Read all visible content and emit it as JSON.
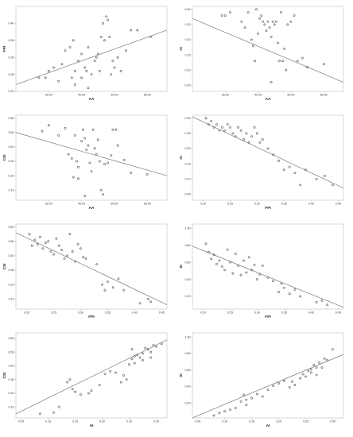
{
  "chart_data": [
    {
      "type": "scatter",
      "xlabel": "AA",
      "ylabel": "FPI",
      "xlim": [
        20,
        66
      ],
      "ylim": [
        0.2,
        0.45
      ],
      "xticks": [
        "30.00",
        "40.00",
        "50.00",
        "60.00"
      ],
      "yticks": [
        "0.20",
        "0.25",
        "0.30",
        "0.35",
        "0.40"
      ],
      "fit": {
        "x": [
          20,
          66
        ],
        "y": [
          0.22,
          0.38
        ]
      },
      "points": [
        [
          29,
          0.24
        ],
        [
          30,
          0.26
        ],
        [
          31.5,
          0.27
        ],
        [
          33,
          0.23
        ],
        [
          34,
          0.28
        ],
        [
          36.5,
          0.33
        ],
        [
          37,
          0.24
        ],
        [
          37.5,
          0.35
        ],
        [
          38,
          0.22
        ],
        [
          38,
          0.26
        ],
        [
          39,
          0.29
        ],
        [
          40,
          0.31
        ],
        [
          40,
          0.24
        ],
        [
          41,
          0.27
        ],
        [
          41.5,
          0.26
        ],
        [
          42,
          0.33
        ],
        [
          42,
          0.21
        ],
        [
          43,
          0.25
        ],
        [
          44,
          0.29
        ],
        [
          44.5,
          0.3
        ],
        [
          45,
          0.31
        ],
        [
          45.5,
          0.26
        ],
        [
          46,
          0.36
        ],
        [
          46.5,
          0.4
        ],
        [
          47,
          0.35
        ],
        [
          47.5,
          0.42
        ],
        [
          48,
          0.41
        ],
        [
          48.5,
          0.36
        ],
        [
          49,
          0.25
        ],
        [
          49.5,
          0.29
        ],
        [
          50,
          0.27
        ],
        [
          51,
          0.3
        ],
        [
          52,
          0.26
        ],
        [
          53.5,
          0.32
        ],
        [
          55,
          0.38
        ],
        [
          57,
          0.38
        ],
        [
          61,
          0.36
        ],
        [
          27,
          0.24
        ],
        [
          35,
          0.32
        ]
      ]
    },
    {
      "type": "scatter",
      "xlabel": "AA",
      "ylabel": "AI",
      "xlim": [
        20,
        66
      ],
      "ylim": [
        0.03,
        0.31
      ],
      "xticks": [
        "30.00",
        "40.00",
        "50.00",
        "60.00"
      ],
      "yticks": [
        "0.05",
        "0.10",
        "0.15",
        "0.20",
        "0.25",
        "0.30"
      ],
      "fit": {
        "x": [
          20,
          66
        ],
        "y": [
          0.27,
          0.06
        ]
      },
      "points": [
        [
          29,
          0.28
        ],
        [
          30,
          0.28
        ],
        [
          31.5,
          0.29
        ],
        [
          35,
          0.26
        ],
        [
          37,
          0.29
        ],
        [
          38,
          0.2
        ],
        [
          38.5,
          0.18
        ],
        [
          39.5,
          0.3
        ],
        [
          40,
          0.22
        ],
        [
          40.5,
          0.27
        ],
        [
          41,
          0.28
        ],
        [
          41.5,
          0.26
        ],
        [
          42,
          0.25
        ],
        [
          42.5,
          0.23
        ],
        [
          43,
          0.26
        ],
        [
          43.5,
          0.24
        ],
        [
          44,
          0.21
        ],
        [
          44.5,
          0.26
        ],
        [
          45,
          0.25
        ],
        [
          45.5,
          0.26
        ],
        [
          46,
          0.19
        ],
        [
          46.5,
          0.13
        ],
        [
          47,
          0.29
        ],
        [
          47.5,
          0.13
        ],
        [
          48,
          0.17
        ],
        [
          48.5,
          0.1
        ],
        [
          49,
          0.25
        ],
        [
          50,
          0.26
        ],
        [
          51,
          0.28
        ],
        [
          52,
          0.13
        ],
        [
          53.5,
          0.14
        ],
        [
          55,
          0.11
        ],
        [
          60,
          0.12
        ],
        [
          44,
          0.06
        ],
        [
          39,
          0.13
        ],
        [
          36,
          0.24
        ]
      ]
    },
    {
      "type": "scatter",
      "xlabel": "AA",
      "ylabel": "CSI",
      "xlim": [
        20,
        66
      ],
      "ylim": [
        0.03,
        0.62
      ],
      "xticks": [
        "30.00",
        "40.00",
        "50.00",
        "60.00"
      ],
      "yticks": [
        "0.10",
        "0.20",
        "0.30",
        "0.40",
        "0.50",
        "0.60"
      ],
      "fit": {
        "x": [
          20,
          66
        ],
        "y": [
          0.5,
          0.2
        ]
      },
      "points": [
        [
          28,
          0.51
        ],
        [
          30,
          0.55
        ],
        [
          33,
          0.48
        ],
        [
          35,
          0.53
        ],
        [
          36,
          0.35
        ],
        [
          37,
          0.32
        ],
        [
          37.5,
          0.19
        ],
        [
          38,
          0.48
        ],
        [
          38.5,
          0.3
        ],
        [
          39,
          0.26
        ],
        [
          40,
          0.44
        ],
        [
          40.5,
          0.52
        ],
        [
          41,
          0.46
        ],
        [
          41.5,
          0.38
        ],
        [
          42,
          0.41
        ],
        [
          42.5,
          0.29
        ],
        [
          43,
          0.23
        ],
        [
          43.5,
          0.52
        ],
        [
          44,
          0.39
        ],
        [
          44.5,
          0.35
        ],
        [
          45,
          0.45
        ],
        [
          45.5,
          0.3
        ],
        [
          46,
          0.1
        ],
        [
          46.5,
          0.07
        ],
        [
          47,
          0.28
        ],
        [
          48,
          0.29
        ],
        [
          49,
          0.34
        ],
        [
          49.5,
          0.52
        ],
        [
          50.5,
          0.52
        ],
        [
          51,
          0.41
        ],
        [
          53,
          0.31
        ],
        [
          55,
          0.22
        ],
        [
          60,
          0.21
        ],
        [
          39,
          0.18
        ],
        [
          41,
          0.06
        ]
      ]
    },
    {
      "type": "scatter",
      "xlabel": "FPI",
      "ylabel": "AI",
      "xlim": [
        0.18,
        0.46
      ],
      "ylim": [
        0.03,
        0.31
      ],
      "xticks": [
        "0.20",
        "0.25",
        "0.30",
        "0.35",
        "0.40",
        "0.45"
      ],
      "yticks": [
        "0.05",
        "0.10",
        "0.15",
        "0.20",
        "0.25",
        "0.30"
      ],
      "fit": {
        "x": [
          0.18,
          0.46
        ],
        "y": [
          0.305,
          0.07
        ]
      },
      "points": [
        [
          0.205,
          0.3
        ],
        [
          0.21,
          0.28
        ],
        [
          0.215,
          0.29
        ],
        [
          0.22,
          0.27
        ],
        [
          0.225,
          0.28
        ],
        [
          0.23,
          0.26
        ],
        [
          0.235,
          0.27
        ],
        [
          0.24,
          0.26
        ],
        [
          0.245,
          0.28
        ],
        [
          0.25,
          0.27
        ],
        [
          0.255,
          0.25
        ],
        [
          0.26,
          0.24
        ],
        [
          0.265,
          0.27
        ],
        [
          0.27,
          0.26
        ],
        [
          0.275,
          0.23
        ],
        [
          0.28,
          0.25
        ],
        [
          0.285,
          0.22
        ],
        [
          0.29,
          0.24
        ],
        [
          0.295,
          0.27
        ],
        [
          0.3,
          0.25
        ],
        [
          0.305,
          0.22
        ],
        [
          0.31,
          0.23
        ],
        [
          0.32,
          0.2
        ],
        [
          0.33,
          0.18
        ],
        [
          0.34,
          0.16
        ],
        [
          0.35,
          0.13
        ],
        [
          0.36,
          0.14
        ],
        [
          0.37,
          0.12
        ],
        [
          0.39,
          0.13
        ],
        [
          0.41,
          0.1
        ],
        [
          0.38,
          0.08
        ],
        [
          0.425,
          0.11
        ],
        [
          0.44,
          0.08
        ]
      ]
    },
    {
      "type": "scatter",
      "xlabel": "FPI",
      "ylabel": "CSI",
      "xlim": [
        0.18,
        0.46
      ],
      "ylim": [
        0.03,
        0.62
      ],
      "xticks": [
        "0.20",
        "0.25",
        "0.30",
        "0.35",
        "0.40",
        "0.45"
      ],
      "yticks": [
        "0.10",
        "0.20",
        "0.30",
        "0.40",
        "0.50",
        "0.60"
      ],
      "fit": {
        "x": [
          0.18,
          0.46
        ],
        "y": [
          0.56,
          0.06
        ]
      },
      "points": [
        [
          0.205,
          0.55
        ],
        [
          0.21,
          0.47
        ],
        [
          0.215,
          0.51
        ],
        [
          0.22,
          0.48
        ],
        [
          0.225,
          0.53
        ],
        [
          0.23,
          0.45
        ],
        [
          0.235,
          0.49
        ],
        [
          0.24,
          0.5
        ],
        [
          0.245,
          0.43
        ],
        [
          0.25,
          0.41
        ],
        [
          0.255,
          0.52
        ],
        [
          0.26,
          0.47
        ],
        [
          0.265,
          0.44
        ],
        [
          0.27,
          0.38
        ],
        [
          0.275,
          0.4
        ],
        [
          0.28,
          0.55
        ],
        [
          0.285,
          0.43
        ],
        [
          0.29,
          0.36
        ],
        [
          0.295,
          0.48
        ],
        [
          0.3,
          0.45
        ],
        [
          0.305,
          0.39
        ],
        [
          0.31,
          0.38
        ],
        [
          0.33,
          0.34
        ],
        [
          0.34,
          0.2
        ],
        [
          0.345,
          0.16
        ],
        [
          0.35,
          0.22
        ],
        [
          0.36,
          0.18
        ],
        [
          0.37,
          0.24
        ],
        [
          0.38,
          0.16
        ],
        [
          0.41,
          0.07
        ],
        [
          0.425,
          0.1
        ],
        [
          0.43,
          0.08
        ]
      ]
    },
    {
      "type": "scatter",
      "xlabel": "FPI",
      "ylabel": "SI",
      "xlim": [
        0.18,
        0.46
      ],
      "ylim": [
        0.05,
        1.05
      ],
      "xticks": [
        "0.20",
        "0.25",
        "0.30",
        "0.35",
        "0.40",
        "0.45"
      ],
      "yticks": [
        "0.20",
        "0.40",
        "0.60",
        "0.80",
        "1.00"
      ],
      "fit": {
        "x": [
          0.18,
          0.46
        ],
        "y": [
          0.79,
          0.07
        ]
      },
      "points": [
        [
          0.205,
          0.82
        ],
        [
          0.21,
          0.72
        ],
        [
          0.215,
          0.64
        ],
        [
          0.22,
          0.69
        ],
        [
          0.225,
          0.58
        ],
        [
          0.23,
          0.62
        ],
        [
          0.235,
          0.55
        ],
        [
          0.24,
          0.51
        ],
        [
          0.245,
          0.75
        ],
        [
          0.25,
          0.6
        ],
        [
          0.255,
          0.47
        ],
        [
          0.26,
          0.7
        ],
        [
          0.265,
          0.56
        ],
        [
          0.27,
          0.45
        ],
        [
          0.275,
          0.62
        ],
        [
          0.28,
          0.48
        ],
        [
          0.285,
          0.66
        ],
        [
          0.29,
          0.51
        ],
        [
          0.295,
          0.57
        ],
        [
          0.3,
          0.4
        ],
        [
          0.305,
          0.46
        ],
        [
          0.31,
          0.56
        ],
        [
          0.32,
          0.42
        ],
        [
          0.33,
          0.38
        ],
        [
          0.34,
          0.25
        ],
        [
          0.345,
          0.35
        ],
        [
          0.35,
          0.3
        ],
        [
          0.36,
          0.23
        ],
        [
          0.37,
          0.28
        ],
        [
          0.38,
          0.2
        ],
        [
          0.41,
          0.13
        ],
        [
          0.43,
          0.1
        ],
        [
          0.42,
          0.15
        ]
      ]
    },
    {
      "type": "scatter",
      "xlabel": "AI",
      "ylabel": "CSI",
      "xlim": [
        0.04,
        0.32
      ],
      "ylim": [
        0.02,
        0.64
      ],
      "xticks": [
        "0.05",
        "0.10",
        "0.15",
        "0.20",
        "0.25",
        "0.30"
      ],
      "yticks": [
        "0.10",
        "0.20",
        "0.30",
        "0.40",
        "0.50",
        "0.60"
      ],
      "fit": {
        "x": [
          0.04,
          0.32
        ],
        "y": [
          0.05,
          0.59
        ]
      },
      "points": [
        [
          0.085,
          0.05
        ],
        [
          0.11,
          0.06
        ],
        [
          0.12,
          0.1
        ],
        [
          0.135,
          0.28
        ],
        [
          0.14,
          0.3
        ],
        [
          0.145,
          0.23
        ],
        [
          0.15,
          0.21
        ],
        [
          0.16,
          0.19
        ],
        [
          0.175,
          0.2
        ],
        [
          0.18,
          0.22
        ],
        [
          0.195,
          0.26
        ],
        [
          0.205,
          0.34
        ],
        [
          0.215,
          0.36
        ],
        [
          0.225,
          0.35
        ],
        [
          0.235,
          0.28
        ],
        [
          0.24,
          0.33
        ],
        [
          0.245,
          0.3
        ],
        [
          0.25,
          0.41
        ],
        [
          0.255,
          0.45
        ],
        [
          0.26,
          0.42
        ],
        [
          0.265,
          0.48
        ],
        [
          0.27,
          0.46
        ],
        [
          0.275,
          0.49
        ],
        [
          0.28,
          0.53
        ],
        [
          0.285,
          0.52
        ],
        [
          0.29,
          0.5
        ],
        [
          0.295,
          0.55
        ],
        [
          0.3,
          0.54
        ],
        [
          0.31,
          0.56
        ],
        [
          0.275,
          0.44
        ],
        [
          0.26,
          0.47
        ],
        [
          0.255,
          0.52
        ],
        [
          0.29,
          0.46
        ]
      ]
    },
    {
      "type": "scatter",
      "xlabel": "AI",
      "ylabel": "SI",
      "xlim": [
        0.04,
        0.32
      ],
      "ylim": [
        0.02,
        1.05
      ],
      "xticks": [
        "0.05",
        "0.10",
        "0.15",
        "0.20",
        "0.25",
        "0.30"
      ],
      "yticks": [
        "0.20",
        "0.40",
        "0.60",
        "0.80",
        "1.00"
      ],
      "fit": {
        "x": [
          0.04,
          0.32
        ],
        "y": [
          0.02,
          0.79
        ]
      },
      "points": [
        [
          0.08,
          0.05
        ],
        [
          0.09,
          0.08
        ],
        [
          0.1,
          0.1
        ],
        [
          0.11,
          0.12
        ],
        [
          0.12,
          0.14
        ],
        [
          0.13,
          0.22
        ],
        [
          0.135,
          0.3
        ],
        [
          0.14,
          0.24
        ],
        [
          0.15,
          0.26
        ],
        [
          0.16,
          0.31
        ],
        [
          0.17,
          0.28
        ],
        [
          0.18,
          0.36
        ],
        [
          0.19,
          0.41
        ],
        [
          0.2,
          0.44
        ],
        [
          0.21,
          0.47
        ],
        [
          0.22,
          0.39
        ],
        [
          0.225,
          0.46
        ],
        [
          0.23,
          0.42
        ],
        [
          0.24,
          0.5
        ],
        [
          0.245,
          0.55
        ],
        [
          0.25,
          0.52
        ],
        [
          0.255,
          0.59
        ],
        [
          0.26,
          0.61
        ],
        [
          0.265,
          0.66
        ],
        [
          0.27,
          0.54
        ],
        [
          0.275,
          0.69
        ],
        [
          0.28,
          0.63
        ],
        [
          0.29,
          0.72
        ],
        [
          0.3,
          0.85
        ],
        [
          0.285,
          0.74
        ],
        [
          0.26,
          0.57
        ],
        [
          0.27,
          0.63
        ],
        [
          0.14,
          0.18
        ]
      ]
    }
  ]
}
